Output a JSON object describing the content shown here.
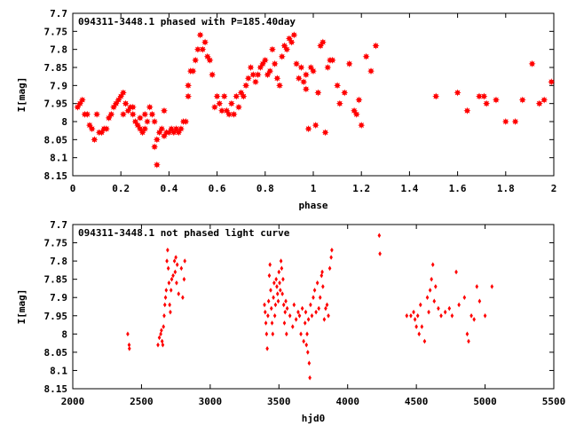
{
  "chart_data": [
    {
      "type": "scatter",
      "title": "094311-3448.1 phased with P=185.40day",
      "xlabel": "phase",
      "ylabel": "I[mag]",
      "xlim": [
        0,
        2
      ],
      "ylim": [
        8.15,
        7.7
      ],
      "y_inverted": true,
      "grid": false,
      "marker_color": "#ff0000",
      "marker": "filled-star",
      "x_ticks": [
        "0",
        "0.2",
        "0.4",
        "0.6",
        "0.8",
        "1",
        "1.2",
        "1.4",
        "1.6",
        "1.8",
        "2"
      ],
      "y_ticks": [
        "7.7",
        "7.75",
        "7.8",
        "7.85",
        "7.9",
        "7.95",
        "8",
        "8.05",
        "8.1",
        "8.15"
      ],
      "points": [
        [
          0.02,
          7.96
        ],
        [
          0.03,
          7.95
        ],
        [
          0.04,
          7.94
        ],
        [
          0.05,
          7.98
        ],
        [
          0.06,
          7.98
        ],
        [
          0.07,
          8.01
        ],
        [
          0.08,
          8.02
        ],
        [
          0.09,
          8.05
        ],
        [
          0.1,
          7.98
        ],
        [
          0.11,
          8.03
        ],
        [
          0.12,
          8.03
        ],
        [
          0.13,
          8.02
        ],
        [
          0.14,
          8.02
        ],
        [
          0.15,
          7.99
        ],
        [
          0.16,
          7.98
        ],
        [
          0.17,
          7.96
        ],
        [
          0.18,
          7.95
        ],
        [
          0.19,
          7.94
        ],
        [
          0.2,
          7.93
        ],
        [
          0.21,
          7.92
        ],
        [
          0.21,
          7.98
        ],
        [
          0.22,
          7.95
        ],
        [
          0.23,
          7.97
        ],
        [
          0.24,
          7.96
        ],
        [
          0.25,
          7.98
        ],
        [
          0.25,
          7.96
        ],
        [
          0.26,
          8.0
        ],
        [
          0.27,
          8.01
        ],
        [
          0.28,
          8.02
        ],
        [
          0.28,
          7.99
        ],
        [
          0.29,
          8.03
        ],
        [
          0.3,
          8.02
        ],
        [
          0.3,
          7.98
        ],
        [
          0.31,
          8.0
        ],
        [
          0.32,
          7.96
        ],
        [
          0.33,
          7.98
        ],
        [
          0.34,
          8.0
        ],
        [
          0.34,
          8.07
        ],
        [
          0.35,
          8.12
        ],
        [
          0.35,
          8.05
        ],
        [
          0.36,
          8.03
        ],
        [
          0.37,
          8.02
        ],
        [
          0.38,
          8.04
        ],
        [
          0.38,
          7.97
        ],
        [
          0.39,
          8.03
        ],
        [
          0.4,
          8.03
        ],
        [
          0.41,
          8.02
        ],
        [
          0.42,
          8.03
        ],
        [
          0.43,
          8.02
        ],
        [
          0.44,
          8.03
        ],
        [
          0.45,
          8.02
        ],
        [
          0.46,
          8.0
        ],
        [
          0.47,
          8.0
        ],
        [
          0.48,
          7.9
        ],
        [
          0.48,
          7.93
        ],
        [
          0.49,
          7.86
        ],
        [
          0.5,
          7.86
        ],
        [
          0.51,
          7.83
        ],
        [
          0.52,
          7.8
        ],
        [
          0.53,
          7.76
        ],
        [
          0.54,
          7.8
        ],
        [
          0.55,
          7.78
        ],
        [
          0.56,
          7.82
        ],
        [
          0.57,
          7.83
        ],
        [
          0.58,
          7.87
        ],
        [
          0.59,
          7.96
        ],
        [
          0.6,
          7.93
        ],
        [
          0.61,
          7.95
        ],
        [
          0.62,
          7.97
        ],
        [
          0.63,
          7.93
        ],
        [
          0.64,
          7.97
        ],
        [
          0.65,
          7.98
        ],
        [
          0.66,
          7.95
        ],
        [
          0.67,
          7.98
        ],
        [
          0.68,
          7.93
        ],
        [
          0.69,
          7.96
        ],
        [
          0.7,
          7.92
        ],
        [
          0.71,
          7.93
        ],
        [
          0.72,
          7.9
        ],
        [
          0.73,
          7.88
        ],
        [
          0.74,
          7.85
        ],
        [
          0.75,
          7.87
        ],
        [
          0.76,
          7.89
        ],
        [
          0.77,
          7.87
        ],
        [
          0.78,
          7.85
        ],
        [
          0.79,
          7.84
        ],
        [
          0.8,
          7.83
        ],
        [
          0.81,
          7.87
        ],
        [
          0.82,
          7.86
        ],
        [
          0.83,
          7.8
        ],
        [
          0.84,
          7.84
        ],
        [
          0.85,
          7.88
        ],
        [
          0.86,
          7.9
        ],
        [
          0.87,
          7.82
        ],
        [
          0.88,
          7.79
        ],
        [
          0.89,
          7.8
        ],
        [
          0.9,
          7.77
        ],
        [
          0.91,
          7.78
        ],
        [
          0.92,
          7.76
        ],
        [
          0.93,
          7.84
        ],
        [
          0.94,
          7.88
        ],
        [
          0.95,
          7.85
        ],
        [
          0.96,
          7.89
        ],
        [
          0.97,
          7.87
        ],
        [
          0.97,
          7.91
        ],
        [
          0.98,
          8.02
        ],
        [
          0.99,
          7.85
        ],
        [
          1.0,
          7.86
        ],
        [
          1.01,
          8.01
        ],
        [
          1.02,
          7.92
        ],
        [
          1.03,
          7.79
        ],
        [
          1.04,
          7.78
        ],
        [
          1.05,
          8.03
        ],
        [
          1.06,
          7.85
        ],
        [
          1.07,
          7.83
        ],
        [
          1.08,
          7.83
        ],
        [
          1.1,
          7.9
        ],
        [
          1.11,
          7.95
        ],
        [
          1.13,
          7.92
        ],
        [
          1.15,
          7.84
        ],
        [
          1.17,
          7.97
        ],
        [
          1.18,
          7.98
        ],
        [
          1.19,
          7.94
        ],
        [
          1.2,
          8.01
        ],
        [
          1.22,
          7.82
        ],
        [
          1.24,
          7.86
        ],
        [
          1.26,
          7.79
        ],
        [
          1.51,
          7.93
        ],
        [
          1.6,
          7.92
        ],
        [
          1.64,
          7.97
        ],
        [
          1.69,
          7.93
        ],
        [
          1.71,
          7.93
        ],
        [
          1.72,
          7.95
        ],
        [
          1.76,
          7.94
        ],
        [
          1.8,
          8.0
        ],
        [
          1.84,
          8.0
        ],
        [
          1.87,
          7.94
        ],
        [
          1.91,
          7.84
        ],
        [
          1.94,
          7.95
        ],
        [
          1.96,
          7.94
        ],
        [
          1.99,
          7.89
        ]
      ]
    },
    {
      "type": "scatter",
      "title": "094311-3448.1 not phased light curve",
      "xlabel": "hjd0",
      "ylabel": "I[mag]",
      "xlim": [
        2000,
        5500
      ],
      "ylim": [
        8.15,
        7.7
      ],
      "y_inverted": true,
      "grid": false,
      "marker_color": "#ff0000",
      "marker": "diamond",
      "x_ticks": [
        "2000",
        "2500",
        "3000",
        "3500",
        "4000",
        "4500",
        "5000",
        "5500"
      ],
      "y_ticks": [
        "7.7",
        "7.75",
        "7.8",
        "7.85",
        "7.9",
        "7.95",
        "8",
        "8.05",
        "8.1",
        "8.15"
      ],
      "points": [
        [
          2400,
          8.0
        ],
        [
          2410,
          8.03
        ],
        [
          2412,
          8.04
        ],
        [
          2620,
          8.03
        ],
        [
          2630,
          8.01
        ],
        [
          2640,
          8.0
        ],
        [
          2645,
          7.99
        ],
        [
          2650,
          8.02
        ],
        [
          2655,
          8.03
        ],
        [
          2660,
          7.98
        ],
        [
          2665,
          7.95
        ],
        [
          2670,
          7.92
        ],
        [
          2675,
          7.9
        ],
        [
          2680,
          7.88
        ],
        [
          2685,
          7.8
        ],
        [
          2690,
          7.77
        ],
        [
          2695,
          7.82
        ],
        [
          2700,
          7.86
        ],
        [
          2705,
          7.92
        ],
        [
          2710,
          7.94
        ],
        [
          2715,
          7.88
        ],
        [
          2720,
          7.85
        ],
        [
          2730,
          7.84
        ],
        [
          2740,
          7.8
        ],
        [
          2745,
          7.83
        ],
        [
          2750,
          7.79
        ],
        [
          2755,
          7.86
        ],
        [
          2760,
          7.81
        ],
        [
          2770,
          7.89
        ],
        [
          2790,
          7.82
        ],
        [
          2800,
          7.9
        ],
        [
          2810,
          7.85
        ],
        [
          2815,
          7.8
        ],
        [
          3395,
          7.92
        ],
        [
          3400,
          7.94
        ],
        [
          3405,
          7.97
        ],
        [
          3410,
          8.0
        ],
        [
          3415,
          8.04
        ],
        [
          3420,
          7.95
        ],
        [
          3425,
          7.91
        ],
        [
          3430,
          7.84
        ],
        [
          3435,
          7.81
        ],
        [
          3440,
          7.88
        ],
        [
          3445,
          7.93
        ],
        [
          3450,
          7.97
        ],
        [
          3455,
          8.0
        ],
        [
          3460,
          7.9
        ],
        [
          3465,
          7.86
        ],
        [
          3470,
          7.95
        ],
        [
          3475,
          7.92
        ],
        [
          3480,
          7.85
        ],
        [
          3485,
          7.87
        ],
        [
          3490,
          7.89
        ],
        [
          3495,
          7.91
        ],
        [
          3500,
          7.83
        ],
        [
          3505,
          7.86
        ],
        [
          3510,
          7.88
        ],
        [
          3515,
          7.8
        ],
        [
          3520,
          7.82
        ],
        [
          3525,
          7.89
        ],
        [
          3530,
          7.85
        ],
        [
          3535,
          7.92
        ],
        [
          3540,
          7.97
        ],
        [
          3545,
          7.94
        ],
        [
          3550,
          7.91
        ],
        [
          3555,
          8.0
        ],
        [
          3560,
          7.93
        ],
        [
          3580,
          7.95
        ],
        [
          3600,
          7.98
        ],
        [
          3610,
          7.92
        ],
        [
          3625,
          7.96
        ],
        [
          3640,
          7.94
        ],
        [
          3650,
          7.95
        ],
        [
          3660,
          8.0
        ],
        [
          3670,
          7.93
        ],
        [
          3680,
          8.02
        ],
        [
          3690,
          7.97
        ],
        [
          3695,
          7.94
        ],
        [
          3700,
          8.03
        ],
        [
          3705,
          8.0
        ],
        [
          3710,
          8.05
        ],
        [
          3715,
          7.96
        ],
        [
          3720,
          8.08
        ],
        [
          3725,
          8.12
        ],
        [
          3730,
          7.92
        ],
        [
          3740,
          7.95
        ],
        [
          3750,
          7.9
        ],
        [
          3760,
          7.88
        ],
        [
          3770,
          7.94
        ],
        [
          3780,
          7.86
        ],
        [
          3790,
          7.93
        ],
        [
          3800,
          7.9
        ],
        [
          3810,
          7.84
        ],
        [
          3815,
          7.83
        ],
        [
          3820,
          7.87
        ],
        [
          3830,
          7.96
        ],
        [
          3840,
          7.93
        ],
        [
          3850,
          7.92
        ],
        [
          3860,
          7.95
        ],
        [
          3870,
          7.82
        ],
        [
          3880,
          7.79
        ],
        [
          3885,
          7.77
        ],
        [
          4230,
          7.73
        ],
        [
          4235,
          7.78
        ],
        [
          4430,
          7.95
        ],
        [
          4460,
          7.95
        ],
        [
          4480,
          7.94
        ],
        [
          4490,
          7.96
        ],
        [
          4500,
          7.98
        ],
        [
          4510,
          7.95
        ],
        [
          4520,
          8.0
        ],
        [
          4530,
          7.92
        ],
        [
          4540,
          7.98
        ],
        [
          4560,
          8.02
        ],
        [
          4580,
          7.9
        ],
        [
          4590,
          7.94
        ],
        [
          4600,
          7.88
        ],
        [
          4610,
          7.85
        ],
        [
          4620,
          7.81
        ],
        [
          4630,
          7.91
        ],
        [
          4640,
          7.87
        ],
        [
          4660,
          7.93
        ],
        [
          4680,
          7.95
        ],
        [
          4710,
          7.94
        ],
        [
          4740,
          7.93
        ],
        [
          4760,
          7.95
        ],
        [
          4790,
          7.83
        ],
        [
          4810,
          7.92
        ],
        [
          4850,
          7.9
        ],
        [
          4870,
          8.0
        ],
        [
          4880,
          8.02
        ],
        [
          4900,
          7.95
        ],
        [
          4920,
          7.96
        ],
        [
          4940,
          7.87
        ],
        [
          4960,
          7.91
        ],
        [
          5000,
          7.95
        ],
        [
          5050,
          7.87
        ]
      ]
    }
  ]
}
